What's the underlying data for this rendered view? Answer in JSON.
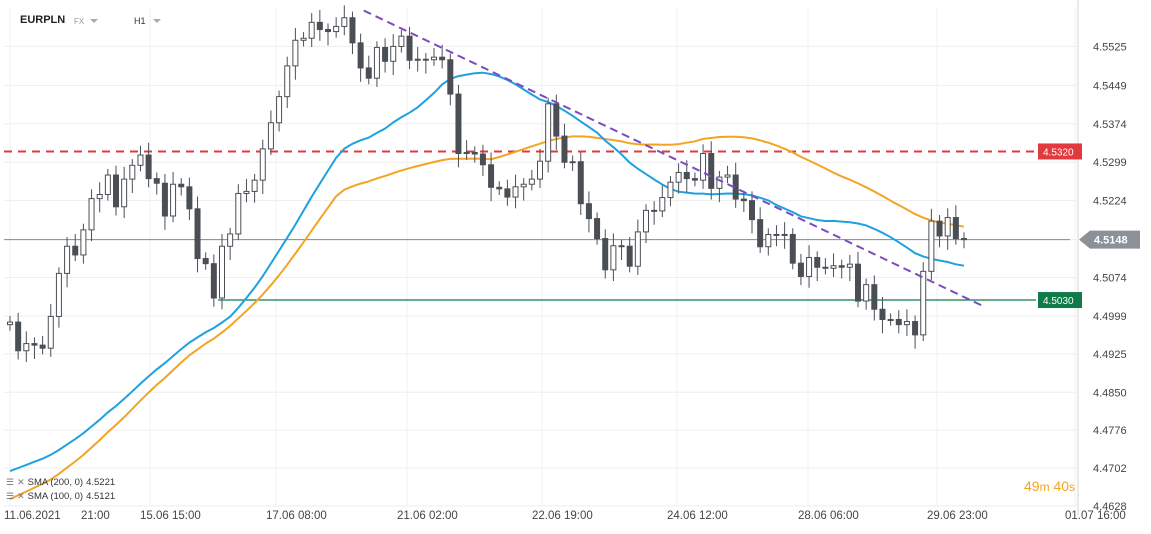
{
  "header": {
    "symbol": "EURPLN",
    "market": "FX",
    "timeframe": "H1"
  },
  "legend": [
    {
      "label": "SMA (200, 0)",
      "value": "4.5221",
      "color": "#f3a423"
    },
    {
      "label": "SMA (100, 0)",
      "value": "4.5121",
      "color": "#1fa1e0"
    }
  ],
  "timer": {
    "minutes": "49",
    "m": "m",
    "seconds": "40",
    "s": "s"
  },
  "chart_data": {
    "type": "candlestick",
    "ylim": [
      4.4628,
      4.56
    ],
    "y_ticks": [
      "4.5525",
      "4.5449",
      "4.5374",
      "4.5299",
      "4.5224",
      "4.5148",
      "4.5074",
      "4.4999",
      "4.4925",
      "4.4850",
      "4.4776",
      "4.4702",
      "4.4628"
    ],
    "x_ticks": [
      "11.06.2021",
      "21:00",
      "15.06 15:00",
      "17.06 08:00",
      "21.06 02:00",
      "22.06 19:00",
      "24.06 12:00",
      "28.06 06:00",
      "29.06 23:00",
      "01.07 16:00"
    ],
    "current_price": {
      "value": 4.5148,
      "label": "4.5148"
    },
    "horizontal_levels": [
      {
        "value": 4.532,
        "label": "4.5320",
        "color": "#e03a3e",
        "style": "dashed"
      },
      {
        "value": 4.503,
        "label": "4.5030",
        "color": "#0f7a4a",
        "style": "solid"
      }
    ],
    "trendline": {
      "from": [
        0.335,
        4.5595
      ],
      "to": [
        0.975,
        4.502
      ],
      "color": "#7b4bbf"
    },
    "close": [
      4.4987,
      4.4931,
      4.4945,
      4.4942,
      4.4936,
      4.4998,
      4.5082,
      4.5135,
      4.5118,
      4.5167,
      4.5228,
      4.5236,
      4.5274,
      4.5212,
      4.5266,
      4.5293,
      4.5313,
      4.5267,
      4.5258,
      4.5194,
      4.5256,
      4.5251,
      4.5208,
      4.5111,
      4.5101,
      4.5034,
      4.5135,
      4.5159,
      4.5238,
      4.5242,
      4.5264,
      4.5325,
      4.5376,
      4.5427,
      4.5487,
      4.5537,
      4.5541,
      4.5572,
      4.5558,
      4.5554,
      4.5564,
      4.5581,
      4.5532,
      4.5483,
      4.5463,
      4.5523,
      4.5496,
      4.5525,
      4.5545,
      4.5498,
      4.55,
      4.5499,
      4.5504,
      4.5499,
      4.5432,
      4.5316,
      4.5318,
      4.5315,
      4.5294,
      4.525,
      4.5247,
      4.5231,
      4.5251,
      4.5256,
      4.5266,
      4.5301,
      4.5413,
      4.535,
      4.5299,
      4.53,
      4.5218,
      4.5189,
      4.515,
      4.5089,
      4.5136,
      4.5135,
      4.5096,
      4.5163,
      4.5205,
      4.5204,
      4.523,
      4.526,
      4.5279,
      4.5267,
      4.5264,
      4.5316,
      4.5248,
      4.527,
      4.5274,
      4.5227,
      4.5224,
      4.5187,
      4.5134,
      4.5158,
      4.5157,
      4.5158,
      4.5102,
      4.5076,
      4.5113,
      4.5094,
      4.5092,
      4.5097,
      4.5094,
      4.51,
      4.5028,
      4.506,
      4.5012,
      4.4992,
      4.4992,
      4.4982,
      4.4988,
      4.4962,
      4.5086,
      4.5184,
      4.5155,
      4.5191,
      4.515,
      4.5148
    ]
  }
}
